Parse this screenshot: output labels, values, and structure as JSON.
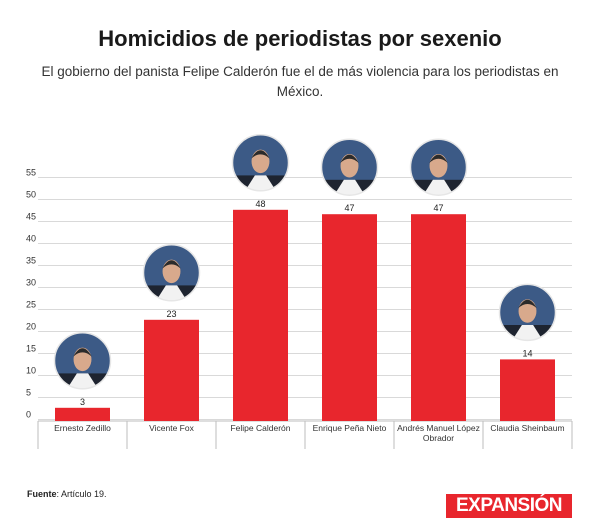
{
  "header": {
    "title": "Homicidios de periodistas por sexenio",
    "subtitle": "El gobierno del panista Felipe Calderón fue el de más violencia para los periodistas en México."
  },
  "chart_data": {
    "type": "bar",
    "categories": [
      "Ernesto Zedillo",
      "Vicente Fox",
      "Felipe Calderón",
      "Enrique Peña Nieto",
      "Andrés Manuel López Obrador",
      "Claudia Sheinbaum"
    ],
    "values": [
      3,
      23,
      48,
      47,
      47,
      14
    ],
    "yticks": [
      0,
      5,
      10,
      15,
      20,
      25,
      30,
      35,
      40,
      45,
      50,
      55
    ],
    "ylim": [
      0,
      55
    ],
    "grid": true,
    "bar_color": "#e8262d",
    "photos": [
      "portrait-ernesto-zedillo",
      "portrait-vicente-fox",
      "portrait-felipe-calderon",
      "portrait-enrique-pena-nieto",
      "portrait-amlo",
      "portrait-claudia-sheinbaum"
    ]
  },
  "footer": {
    "source_label": "Fuente",
    "source_text": ": Artículo 19.",
    "logo_text": "EXPANSIÓN"
  }
}
